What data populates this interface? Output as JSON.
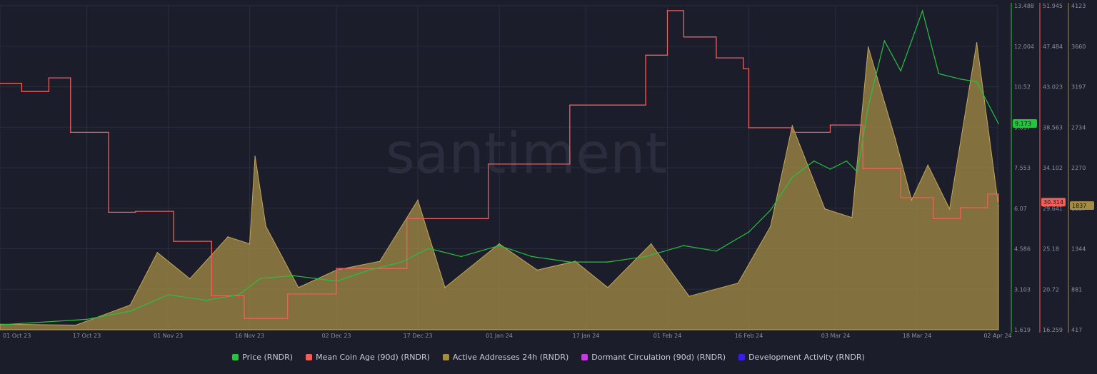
{
  "watermark": "santiment",
  "colors": {
    "background": "#1b1d2a",
    "grid": "#2a2d3d",
    "price": "#26c240",
    "mean_coin_age": "#ef5f5c",
    "active_addresses": "#a58c45",
    "dormant_circulation": "#c23ddc",
    "development_activity": "#3a1de8",
    "axis_text": "#8b8e9c"
  },
  "chart_data": {
    "type": "line",
    "x_tick_labels": [
      "01 Oct 23",
      "17 Oct 23",
      "01 Nov 23",
      "16 Nov 23",
      "02 Dec 23",
      "17 Dec 23",
      "01 Jan 24",
      "17 Jan 24",
      "01 Feb 24",
      "16 Feb 24",
      "03 Mar 24",
      "18 Mar 24",
      "02 Apr 24"
    ],
    "x_range": [
      "2023-10-01",
      "2024-04-02"
    ],
    "axes": {
      "price": {
        "ticks": [
          "13.488",
          "12.004",
          "10.52",
          "9.037",
          "7.553",
          "6.07",
          "4.586",
          "3.103",
          "1.619"
        ],
        "range": [
          1.619,
          13.488
        ],
        "current_label": "9.173"
      },
      "mean_coin_age": {
        "ticks": [
          "51.945",
          "47.484",
          "43.023",
          "38.563",
          "34.102",
          "29.641",
          "25.18",
          "20.72",
          "16.259"
        ],
        "range": [
          16.259,
          51.945
        ],
        "current_label": "30.314"
      },
      "active_addresses": {
        "ticks": [
          "4123",
          "3660",
          "3197",
          "2734",
          "2270",
          "1807",
          "1344",
          "881",
          "417"
        ],
        "range": [
          417,
          4123
        ],
        "current_label": "1837"
      }
    },
    "series": [
      {
        "name": "Price (RNDR)",
        "axis": "price",
        "points": [
          [
            "2023-10-01",
            1.8
          ],
          [
            "2023-10-17",
            2.0
          ],
          [
            "2023-10-25",
            2.3
          ],
          [
            "2023-11-01",
            2.9
          ],
          [
            "2023-11-08",
            2.7
          ],
          [
            "2023-11-14",
            2.9
          ],
          [
            "2023-11-18",
            3.5
          ],
          [
            "2023-11-24",
            3.6
          ],
          [
            "2023-12-02",
            3.4
          ],
          [
            "2023-12-08",
            3.8
          ],
          [
            "2023-12-14",
            4.1
          ],
          [
            "2023-12-19",
            4.6
          ],
          [
            "2023-12-25",
            4.3
          ],
          [
            "2024-01-01",
            4.7
          ],
          [
            "2024-01-07",
            4.3
          ],
          [
            "2024-01-14",
            4.1
          ],
          [
            "2024-01-21",
            4.1
          ],
          [
            "2024-01-28",
            4.3
          ],
          [
            "2024-02-04",
            4.7
          ],
          [
            "2024-02-10",
            4.5
          ],
          [
            "2024-02-16",
            5.2
          ],
          [
            "2024-02-20",
            6.0
          ],
          [
            "2024-02-24",
            7.2
          ],
          [
            "2024-02-28",
            7.8
          ],
          [
            "2024-03-02",
            7.5
          ],
          [
            "2024-03-05",
            7.8
          ],
          [
            "2024-03-07",
            7.4
          ],
          [
            "2024-03-09",
            9.8
          ],
          [
            "2024-03-12",
            12.2
          ],
          [
            "2024-03-15",
            11.1
          ],
          [
            "2024-03-19",
            13.3
          ],
          [
            "2024-03-22",
            11.0
          ],
          [
            "2024-03-26",
            10.8
          ],
          [
            "2024-03-29",
            10.7
          ],
          [
            "2024-04-02",
            9.173
          ]
        ]
      },
      {
        "name": "Mean Coin Age (90d) (RNDR)",
        "axis": "mean_coin_age",
        "points": [
          [
            "2023-10-01",
            43.4
          ],
          [
            "2023-10-05",
            42.5
          ],
          [
            "2023-10-10",
            44.0
          ],
          [
            "2023-10-14",
            38.0
          ],
          [
            "2023-10-21",
            29.2
          ],
          [
            "2023-10-26",
            29.3
          ],
          [
            "2023-11-02",
            26.0
          ],
          [
            "2023-11-09",
            20.0
          ],
          [
            "2023-11-15",
            17.5
          ],
          [
            "2023-11-23",
            20.2
          ],
          [
            "2023-12-02",
            23.0
          ],
          [
            "2023-12-15",
            28.5
          ],
          [
            "2023-12-30",
            34.5
          ],
          [
            "2024-01-14",
            41.0
          ],
          [
            "2024-01-28",
            46.5
          ],
          [
            "2024-02-01",
            51.4
          ],
          [
            "2024-02-04",
            48.5
          ],
          [
            "2024-02-10",
            46.2
          ],
          [
            "2024-02-15",
            45.0
          ],
          [
            "2024-02-16",
            38.5
          ],
          [
            "2024-02-24",
            38.0
          ],
          [
            "2024-03-02",
            38.8
          ],
          [
            "2024-03-08",
            34.0
          ],
          [
            "2024-03-15",
            30.8
          ],
          [
            "2024-03-21",
            28.5
          ],
          [
            "2024-03-26",
            29.7
          ],
          [
            "2024-03-31",
            31.2
          ],
          [
            "2024-04-02",
            30.314
          ]
        ]
      },
      {
        "name": "Active Addresses 24h (RNDR)",
        "axis": "active_addresses",
        "points": [
          [
            "2023-10-01",
            480
          ],
          [
            "2023-10-15",
            470
          ],
          [
            "2023-10-25",
            700
          ],
          [
            "2023-10-30",
            1300
          ],
          [
            "2023-11-05",
            1000
          ],
          [
            "2023-11-12",
            1480
          ],
          [
            "2023-11-16",
            1400
          ],
          [
            "2023-11-17",
            2400
          ],
          [
            "2023-11-19",
            1600
          ],
          [
            "2023-11-25",
            900
          ],
          [
            "2023-12-02",
            1100
          ],
          [
            "2023-12-10",
            1200
          ],
          [
            "2023-12-17",
            1900
          ],
          [
            "2023-12-22",
            900
          ],
          [
            "2024-01-01",
            1400
          ],
          [
            "2024-01-08",
            1100
          ],
          [
            "2024-01-15",
            1200
          ],
          [
            "2024-01-21",
            900
          ],
          [
            "2024-01-29",
            1400
          ],
          [
            "2024-02-05",
            800
          ],
          [
            "2024-02-14",
            950
          ],
          [
            "2024-02-20",
            1600
          ],
          [
            "2024-02-24",
            2750
          ],
          [
            "2024-03-01",
            1800
          ],
          [
            "2024-03-06",
            1700
          ],
          [
            "2024-03-09",
            3650
          ],
          [
            "2024-03-14",
            2600
          ],
          [
            "2024-03-17",
            1900
          ],
          [
            "2024-03-20",
            2300
          ],
          [
            "2024-03-24",
            1800
          ],
          [
            "2024-03-29",
            3700
          ],
          [
            "2024-04-02",
            1837
          ]
        ]
      },
      {
        "name": "Dormant Circulation (90d) (RNDR)",
        "axis": "none",
        "points": []
      },
      {
        "name": "Development Activity (RNDR)",
        "axis": "none",
        "points": []
      }
    ],
    "legend_position": "bottom-center",
    "grid": true
  }
}
